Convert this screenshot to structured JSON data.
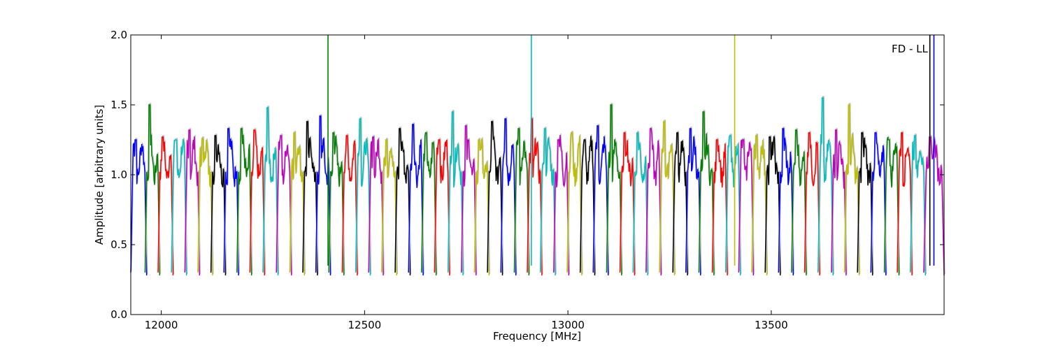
{
  "chart_data": {
    "type": "line",
    "title": "",
    "xlabel": "Frequency [MHz]",
    "ylabel": "Amplitude [arbitrary units]",
    "annotation": "FD - LL",
    "xlim": [
      11925,
      13925
    ],
    "ylim": [
      0.0,
      2.0
    ],
    "x_ticks": [
      12000,
      12500,
      13000,
      13500
    ],
    "x_tick_labels": [
      "12000",
      "12500",
      "13000",
      "13500"
    ],
    "y_ticks": [
      0.0,
      0.5,
      1.0,
      1.5,
      2.0
    ],
    "y_tick_labels": [
      "0.0",
      "0.5",
      "1.0",
      "1.5",
      "2.0"
    ],
    "grid": false,
    "legend": "none",
    "background_series_color": "#bbbbbb",
    "color_cycle": [
      "#0000ff",
      "#008000",
      "#ff0000",
      "#00bfbf",
      "#bf00bf",
      "#bfbf00",
      "#000000"
    ],
    "series_description": "Repeating spectral windows (channels): each segment rises from ~0.3 to a plateau near 1.1-1.3 and falls back; colors cycle through the color list.",
    "segment_x_starts": [
      11925,
      11960,
      11992,
      12025,
      12058,
      12090,
      12122,
      12154,
      12186,
      12218,
      12250,
      12283,
      12316,
      12348,
      12380,
      12412,
      12445,
      12478,
      12510,
      12542,
      12575,
      12608,
      12640,
      12672,
      12705,
      12738,
      12770,
      12802,
      12835,
      12868,
      12900,
      12932,
      12965,
      12998,
      13030,
      13062,
      13095,
      13128,
      13160,
      13192,
      13225,
      13258,
      13290,
      13322,
      13355,
      13388,
      13420,
      13452,
      13485,
      13518,
      13550,
      13582,
      13615,
      13648,
      13680,
      13712,
      13745,
      13778,
      13810,
      13842,
      13875
    ],
    "segment_peaks": [
      1.25,
      1.5,
      1.27,
      1.25,
      1.32,
      1.26,
      1.28,
      1.33,
      1.33,
      1.32,
      1.48,
      1.28,
      1.3,
      1.38,
      1.42,
      1.3,
      1.28,
      1.4,
      1.27,
      1.25,
      1.33,
      1.36,
      1.3,
      1.25,
      1.45,
      1.35,
      1.25,
      1.38,
      1.4,
      1.33,
      1.4,
      1.33,
      1.25,
      1.3,
      1.25,
      1.35,
      1.5,
      1.3,
      1.3,
      1.33,
      1.38,
      1.3,
      1.33,
      1.45,
      1.25,
      1.28,
      1.25,
      1.28,
      1.27,
      1.33,
      1.32,
      1.3,
      1.55,
      1.32,
      1.5,
      1.3,
      1.3,
      1.25,
      1.3,
      1.28,
      1.27
    ],
    "spikes": [
      {
        "x": 12410,
        "y_top": 2.0,
        "color": "#008000"
      },
      {
        "x": 12910,
        "y_top": 2.0,
        "color": "#00bfbf"
      },
      {
        "x": 13410,
        "y_top": 2.0,
        "color": "#bfbf00"
      },
      {
        "x": 13890,
        "y_top": 2.0,
        "color": "#000000"
      },
      {
        "x": 13900,
        "y_top": 2.0,
        "color": "#0000ff"
      }
    ]
  }
}
